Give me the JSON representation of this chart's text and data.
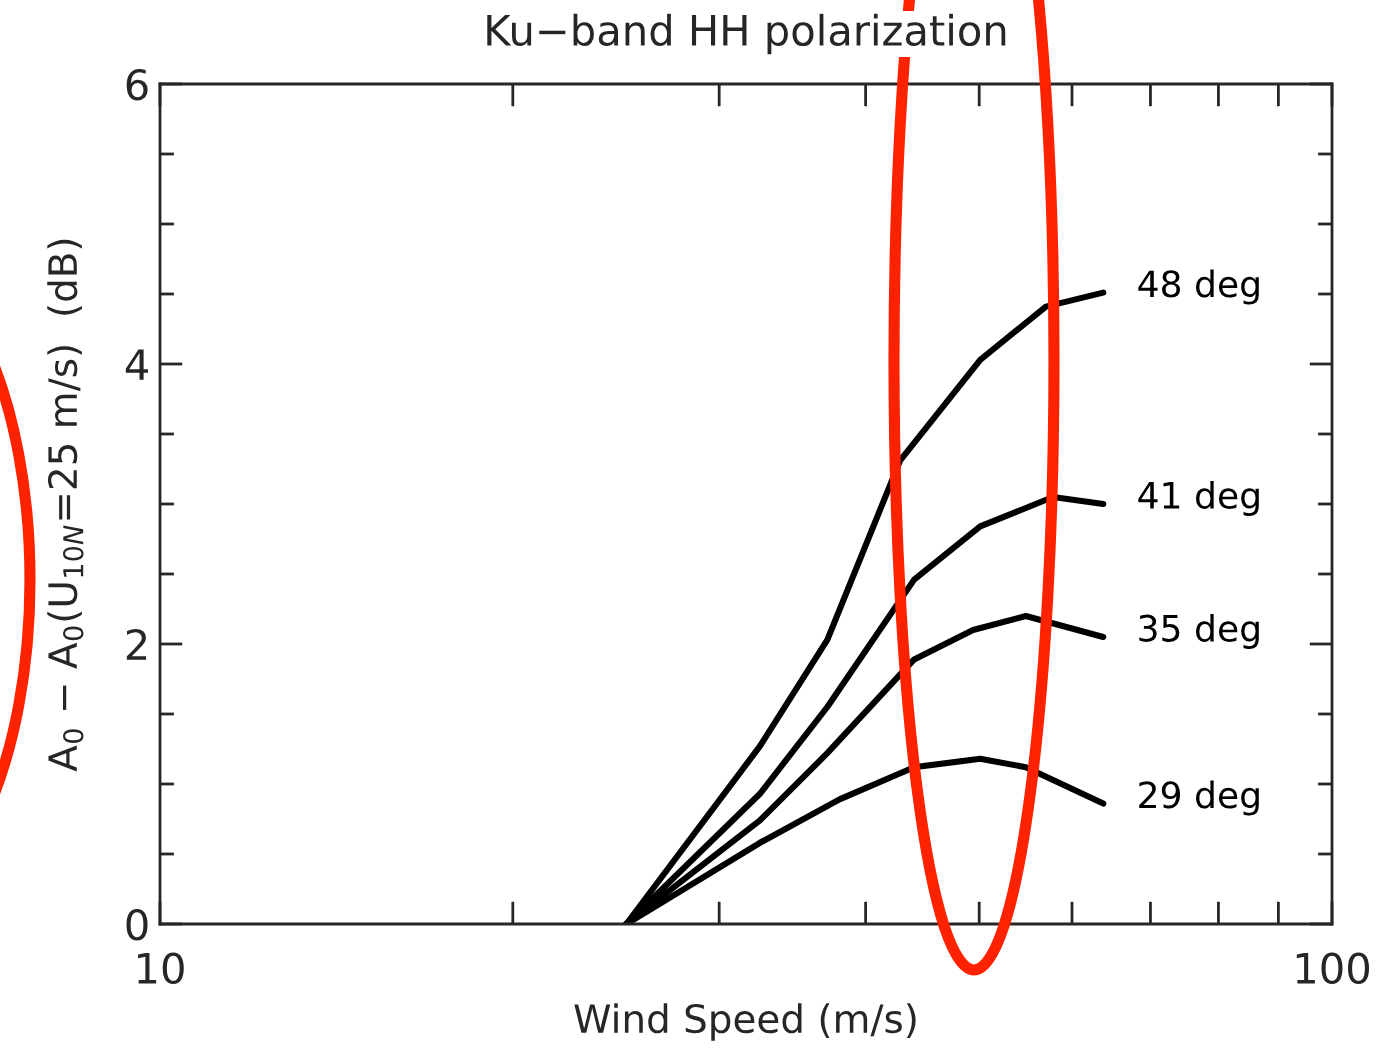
{
  "chart_data": {
    "type": "line",
    "title": "Ku−band HH polarization",
    "xlabel": "Wind Speed (m/s)",
    "ylabel": "A$_{0}$ − A$_{0}$(U$_{10N}$=25 m/s)  (dB)",
    "log": "x",
    "xlim": [
      10,
      100
    ],
    "ylim": [
      0,
      6
    ],
    "xticks": [
      10,
      {
        "value": 20,
        "label": null
      },
      {
        "value": 30,
        "label": null
      },
      {
        "value": 40,
        "label": null
      },
      {
        "value": 50,
        "label": null
      },
      {
        "value": 60,
        "label": null
      },
      {
        "value": 70,
        "label": null
      },
      {
        "value": 80,
        "label": null
      },
      {
        "value": 90,
        "label": null
      },
      100
    ],
    "yticks": [
      0,
      {
        "value": 0.5,
        "label": null
      },
      {
        "value": 1,
        "label": null
      },
      {
        "value": 1.5,
        "label": null
      },
      2,
      {
        "value": 2.5,
        "label": null
      },
      {
        "value": 3,
        "label": null
      },
      {
        "value": 3.5,
        "label": null
      },
      4,
      {
        "value": 4.5,
        "label": null
      },
      {
        "value": 5,
        "label": null
      },
      {
        "value": 5.5,
        "label": null
      },
      6
    ],
    "grid": false,
    "legend": false,
    "marker": "none",
    "line_style": "solid",
    "series": [
      {
        "name": "48 deg",
        "color": "#000000",
        "x": [
          25,
          32.5,
          37.1,
          42.8,
          50.1,
          57.0,
          63.8
        ],
        "values": [
          0,
          1.27,
          2.03,
          3.31,
          4.03,
          4.41,
          4.51
        ]
      },
      {
        "name": "41 deg",
        "color": "#000000",
        "x": [
          25,
          32.5,
          37.1,
          44.0,
          50.1,
          57.8,
          63.8
        ],
        "values": [
          0,
          0.93,
          1.55,
          2.46,
          2.84,
          3.05,
          3.0
        ]
      },
      {
        "name": "35 deg",
        "color": "#000000",
        "x": [
          25,
          32.5,
          37.1,
          44.0,
          49.4,
          54.8,
          63.8
        ],
        "values": [
          0,
          0.74,
          1.22,
          1.89,
          2.1,
          2.2,
          2.05
        ]
      },
      {
        "name": "29 deg",
        "color": "#000000",
        "x": [
          25,
          32.5,
          38.0,
          44.0,
          50.1,
          54.8,
          63.8
        ],
        "values": [
          0,
          0.58,
          0.89,
          1.12,
          1.18,
          1.12,
          0.86
        ]
      }
    ]
  }
}
